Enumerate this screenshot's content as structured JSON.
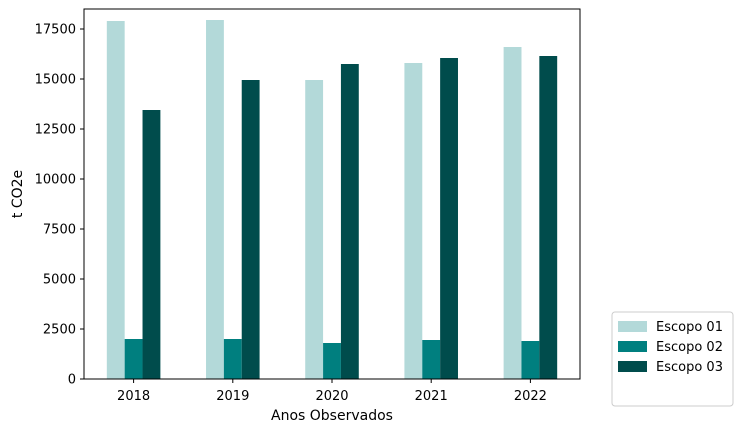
{
  "chart_data": {
    "type": "bar",
    "title": "",
    "xlabel": "Anos Observados",
    "ylabel": "t CO2e",
    "categories": [
      "2018",
      "2019",
      "2020",
      "2021",
      "2022"
    ],
    "series": [
      {
        "name": "Escopo 01",
        "color": "#b3d9d9",
        "values": [
          17900,
          17950,
          14950,
          15800,
          16600
        ]
      },
      {
        "name": "Escopo 02",
        "color": "#007f7f",
        "values": [
          2000,
          2000,
          1800,
          1950,
          1900
        ]
      },
      {
        "name": "Escopo 03",
        "color": "#004c4c",
        "values": [
          13450,
          14950,
          15750,
          16050,
          16150
        ]
      }
    ],
    "ylim": [
      0,
      18500
    ],
    "yticks": [
      "0",
      "2500",
      "5000",
      "7500",
      "10000",
      "12500",
      "15000",
      "17500"
    ],
    "grid": false,
    "legend_position": "outside-lower-right"
  }
}
